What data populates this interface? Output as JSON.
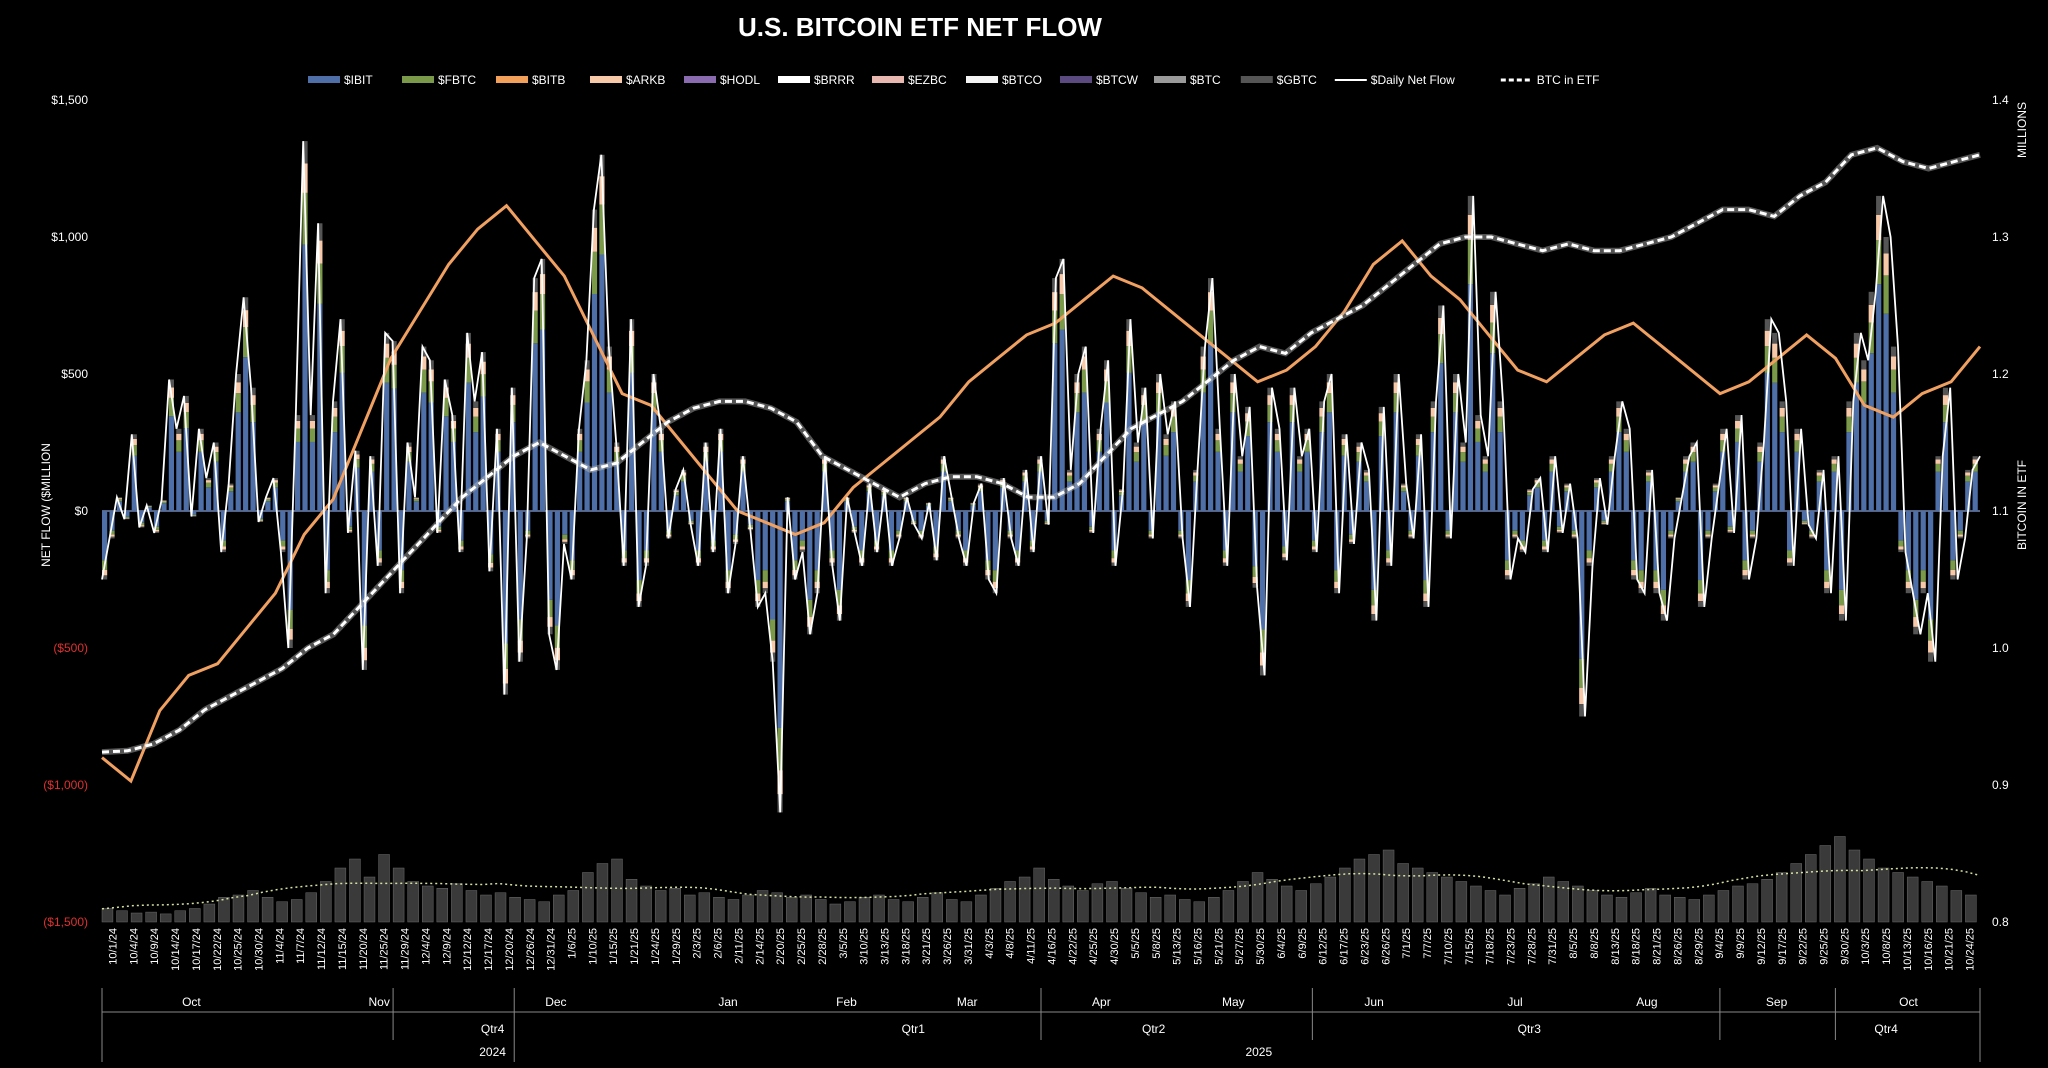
{
  "colors": {
    "IBIT": "#4e6fa8",
    "FBTC": "#7a9a4a",
    "BITB": "#f2a05a",
    "ARKB": "#f7c9a8",
    "HODL": "#8a6bb0",
    "BRRR": "#ffffff",
    "EZBC": "#e8b8b0",
    "BTCO": "#f4f4f4",
    "BTCW": "#5a4a80",
    "BTC": "#9a9a9a",
    "GBTC": "#555555",
    "daily_net_flow": "#ffffff",
    "btc_in_etf": "#ffffff",
    "bitb_line": "#f0a060",
    "negative_tick": "#e03030"
  },
  "chart_data": {
    "type": "bar",
    "title": "U.S. BITCOIN ETF NET FLOW",
    "ylabel": "NET FLOW ($MILLION",
    "y2label": "BITCOIN IN ETF",
    "y2unit": "MILLIONS",
    "ylim": [
      -1500,
      1500
    ],
    "y2lim": [
      0.8,
      1.4
    ],
    "yticks": [
      "$1,500",
      "$1,000",
      "$500",
      "$0",
      "($500)",
      "($1,000)",
      "($1,500)"
    ],
    "y2ticks": [
      "1.4",
      "1.3",
      "1.2",
      "1.1",
      "1.0",
      "0.9",
      "0.8"
    ],
    "legend": [
      "$IBIT",
      "$FBTC",
      "$BITB",
      "$ARKB",
      "$HODL",
      "$BRRR",
      "$EZBC",
      "$BTCO",
      "$BTCW",
      "$BTC",
      "$GBTC",
      "$Daily Net Flow",
      "BTC in ETF"
    ],
    "legend_position": "top",
    "date_ticks": [
      "10/1/24",
      "10/4/24",
      "10/9/24",
      "10/14/24",
      "10/17/24",
      "10/22/24",
      "10/25/24",
      "10/30/24",
      "11/4/24",
      "11/7/24",
      "11/12/24",
      "11/15/24",
      "11/20/24",
      "11/25/24",
      "11/29/24",
      "12/4/24",
      "12/9/24",
      "12/12/24",
      "12/17/24",
      "12/20/24",
      "12/26/24",
      "12/31/24",
      "1/6/25",
      "1/10/25",
      "1/15/25",
      "1/21/25",
      "1/24/25",
      "1/29/25",
      "2/3/25",
      "2/6/25",
      "2/11/25",
      "2/14/25",
      "2/20/25",
      "2/25/25",
      "2/28/25",
      "3/5/25",
      "3/10/25",
      "3/13/25",
      "3/18/25",
      "3/21/25",
      "3/26/25",
      "3/31/25",
      "4/3/25",
      "4/8/25",
      "4/11/25",
      "4/16/25",
      "4/22/25",
      "4/25/25",
      "4/30/25",
      "5/5/25",
      "5/8/25",
      "5/13/25",
      "5/16/25",
      "5/21/25",
      "5/27/25",
      "5/30/25",
      "6/4/25",
      "6/9/25",
      "6/12/25",
      "6/17/25",
      "6/23/25",
      "6/26/25",
      "7/1/25",
      "7/7/25",
      "7/10/25",
      "7/15/25",
      "7/18/25",
      "7/23/25",
      "7/28/25",
      "7/31/25",
      "8/5/25",
      "8/8/25",
      "8/13/25",
      "8/18/25",
      "8/21/25",
      "8/26/25",
      "8/29/25",
      "9/4/25",
      "9/9/25",
      "9/12/25",
      "9/17/25",
      "9/22/25",
      "9/25/25",
      "9/30/25",
      "10/3/25",
      "10/8/25",
      "10/13/25",
      "10/16/25",
      "10/21/25",
      "10/24/25"
    ],
    "months": [
      "Oct",
      "Nov",
      "Dec",
      "Jan",
      "Feb",
      "Mar",
      "Apr",
      "May",
      "Jun",
      "Jul",
      "Aug",
      "Sep",
      "Oct"
    ],
    "quarters": [
      "Qtr4",
      "Qtr1",
      "Qtr2",
      "Qtr3",
      "Qtr4"
    ],
    "years": [
      "2024",
      "2025"
    ],
    "daily_net_flow": [
      -250,
      -100,
      50,
      -30,
      280,
      -60,
      20,
      -80,
      40,
      480,
      300,
      420,
      -20,
      300,
      120,
      250,
      -150,
      100,
      500,
      780,
      450,
      -40,
      50,
      120,
      -150,
      -500,
      350,
      1350,
      350,
      1050,
      -300,
      400,
      700,
      -80,
      220,
      -580,
      200,
      -200,
      650,
      620,
      -300,
      250,
      50,
      600,
      550,
      -80,
      480,
      350,
      -150,
      650,
      400,
      580,
      -220,
      300,
      -670,
      450,
      -550,
      -100,
      850,
      920,
      -450,
      -580,
      -120,
      -250,
      300,
      550,
      1100,
      1300,
      600,
      250,
      -200,
      700,
      -350,
      -200,
      500,
      300,
      -100,
      80,
      150,
      -50,
      -200,
      250,
      -150,
      300,
      -300,
      -120,
      200,
      -70,
      -350,
      -300,
      -550,
      -1100,
      50,
      -250,
      -150,
      -450,
      -300,
      200,
      -200,
      -400,
      50,
      -80,
      -200,
      100,
      -150,
      80,
      -200,
      -100,
      50,
      -50,
      -100,
      30,
      -180,
      200,
      50,
      -100,
      -200,
      30,
      100,
      -250,
      -300,
      120,
      -100,
      -200,
      150,
      -150,
      200,
      -50,
      850,
      920,
      150,
      500,
      600,
      -80,
      300,
      550,
      -200,
      80,
      700,
      250,
      450,
      -100,
      500,
      280,
      400,
      -100,
      -350,
      150,
      600,
      850,
      300,
      -200,
      500,
      200,
      380,
      -280,
      -600,
      450,
      300,
      -180,
      450,
      200,
      300,
      -150,
      400,
      500,
      -300,
      280,
      -120,
      250,
      150,
      -400,
      380,
      -200,
      500,
      100,
      -100,
      280,
      -350,
      400,
      750,
      -100,
      500,
      250,
      1150,
      350,
      200,
      800,
      400,
      -250,
      -100,
      -150,
      80,
      120,
      -150,
      200,
      -80,
      100,
      -100,
      -750,
      -200,
      120,
      -50,
      200,
      400,
      300,
      -250,
      -300,
      150,
      -300,
      -400,
      -100,
      50,
      200,
      250,
      -350,
      -100,
      100,
      300,
      -80,
      350,
      -250,
      -100,
      250,
      700,
      650,
      400,
      -200,
      300,
      -50,
      -100,
      150,
      -300,
      200,
      -400,
      400,
      650,
      550,
      800,
      1150,
      1000,
      600,
      -150,
      -300,
      -450,
      -300,
      -550,
      200,
      450,
      -250,
      -100,
      150,
      200
    ],
    "btc_in_etf": [
      0.924,
      0.925,
      0.93,
      0.94,
      0.955,
      0.965,
      0.975,
      0.985,
      1.0,
      1.01,
      1.03,
      1.05,
      1.07,
      1.09,
      1.11,
      1.125,
      1.14,
      1.15,
      1.14,
      1.13,
      1.135,
      1.15,
      1.165,
      1.175,
      1.18,
      1.18,
      1.175,
      1.165,
      1.14,
      1.13,
      1.12,
      1.11,
      1.12,
      1.125,
      1.125,
      1.12,
      1.11,
      1.11,
      1.12,
      1.14,
      1.16,
      1.17,
      1.18,
      1.195,
      1.21,
      1.22,
      1.215,
      1.23,
      1.24,
      1.25,
      1.265,
      1.28,
      1.295,
      1.3,
      1.3,
      1.295,
      1.29,
      1.295,
      1.29,
      1.29,
      1.295,
      1.3,
      1.31,
      1.32,
      1.32,
      1.315,
      1.33,
      1.34,
      1.36,
      1.365,
      1.355,
      1.35,
      1.355,
      1.36
    ],
    "bitb_line_values": [
      940,
      920,
      980,
      1010,
      1020,
      1050,
      1080,
      1130,
      1160,
      1220,
      1280,
      1320,
      1360,
      1390,
      1410,
      1380,
      1350,
      1300,
      1250,
      1240,
      1210,
      1180,
      1150,
      1140,
      1130,
      1140,
      1170,
      1190,
      1210,
      1230,
      1260,
      1280,
      1300,
      1310,
      1330,
      1350,
      1340,
      1320,
      1300,
      1280,
      1260,
      1270,
      1290,
      1320,
      1360,
      1380,
      1350,
      1330,
      1300,
      1270,
      1260,
      1280,
      1300,
      1310,
      1290,
      1270,
      1250,
      1260,
      1280,
      1300,
      1280,
      1240,
      1230,
      1250,
      1260,
      1290
    ],
    "volume_values": [
      30,
      25,
      20,
      22,
      18,
      25,
      30,
      40,
      55,
      60,
      70,
      55,
      45,
      50,
      65,
      90,
      120,
      140,
      100,
      150,
      120,
      90,
      80,
      75,
      85,
      70,
      60,
      65,
      55,
      50,
      45,
      60,
      70,
      110,
      130,
      140,
      95,
      80,
      70,
      75,
      60,
      65,
      55,
      50,
      60,
      70,
      65,
      55,
      60,
      50,
      40,
      45,
      55,
      60,
      50,
      45,
      55,
      65,
      50,
      45,
      60,
      75,
      90,
      100,
      120,
      95,
      80,
      70,
      85,
      90,
      75,
      65,
      55,
      60,
      50,
      45,
      55,
      70,
      90,
      110,
      95,
      80,
      70,
      85,
      100,
      120,
      140,
      150,
      160,
      130,
      120,
      110,
      100,
      90,
      80,
      70,
      60,
      75,
      85,
      100,
      90,
      80,
      70,
      60,
      55,
      65,
      75,
      60,
      55,
      50,
      60,
      70,
      80,
      85,
      95,
      110,
      130,
      150,
      170,
      190,
      160,
      140,
      120,
      110,
      100,
      90,
      80,
      70,
      60
    ]
  }
}
